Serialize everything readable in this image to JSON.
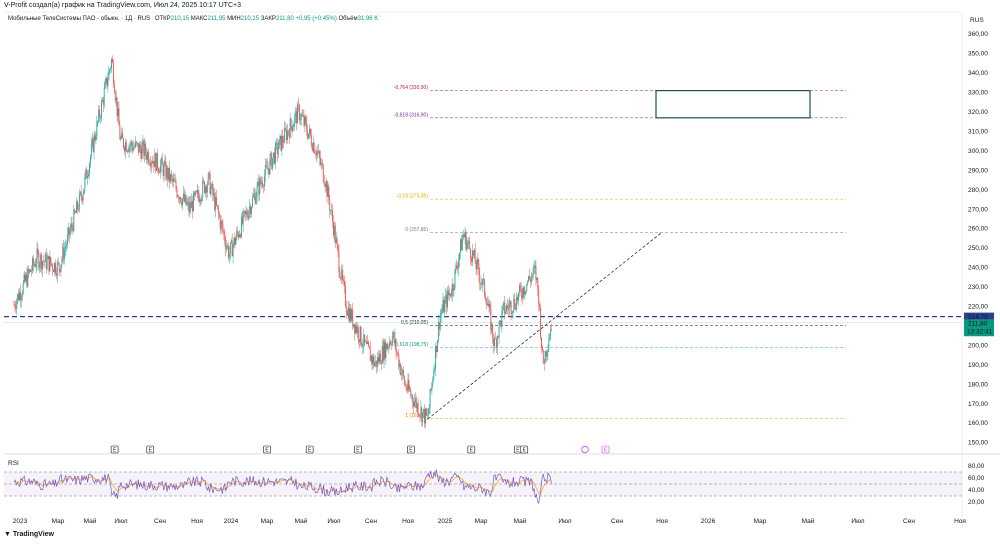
{
  "header": {
    "created_by": "V-Profit создал(а) график на TradingView.com, Июл 24, 2025 10:17 UTC+3"
  },
  "legend": {
    "symbol": "Мобильные ТелеСистемы ПАО - обыкн. · 1Д · RUS",
    "open_label": "ОТКР",
    "open": "210,15",
    "high_label": "МАКС",
    "high": "211,95",
    "low_label": "МИН",
    "low": "210,15",
    "close_label": "ЗАКР",
    "close": "211,80",
    "change": "+0,95 (+0,45%)",
    "volume_label": "Объём",
    "volume": "31,96 K"
  },
  "currency": "RUS",
  "price_axis": [
    "360,00",
    "350,00",
    "340,00",
    "330,00",
    "320,00",
    "310,00",
    "300,00",
    "290,00",
    "280,00",
    "270,00",
    "260,00",
    "250,00",
    "240,00",
    "230,00",
    "220,00",
    "210,00",
    "200,00",
    "190,00",
    "180,00",
    "170,00",
    "160,00",
    "150,00"
  ],
  "price_tags": {
    "line_price": "214,70",
    "last_price": "211,80",
    "countdown": "13:32:41"
  },
  "fib_labels": [
    {
      "text": "-0,764 (330,90)",
      "color": "#b22833"
    },
    {
      "text": "-0,618 (316,90)",
      "color": "#7b1fa2"
    },
    {
      "text": "-0,18 (275,05)",
      "color": "#f2a900"
    },
    {
      "text": "0 (257,85)",
      "color": "#787b86"
    },
    {
      "text": "0,5 (210,05)",
      "color": "#131722"
    },
    {
      "text": "0,618 (198,75)",
      "color": "#089981"
    },
    {
      "text": "1 (162,25)",
      "color": "#f57c00"
    }
  ],
  "earnings_marker": "E",
  "rsi": {
    "label": "RSI",
    "axis": [
      "80,00",
      "60,00",
      "40,00",
      "20,00"
    ]
  },
  "time_axis": [
    "2023",
    "Мар",
    "Май",
    "Июл",
    "Сен",
    "Ноя",
    "2024",
    "Мар",
    "Май",
    "Июл",
    "Сен",
    "Ноя",
    "2025",
    "Мар",
    "Май",
    "Июл",
    "Сен",
    "Ноя",
    "2026",
    "Мар",
    "Май",
    "Июл",
    "Сен",
    "Ноя"
  ],
  "footer": {
    "brand": "TradingView"
  },
  "colors": {
    "up": "#26a69a",
    "down": "#ef5350",
    "rsi_line": "#7e57c2",
    "rsi_ma": "#f7a600",
    "box": "#1f4e5a",
    "dash_blue": "#2a3f8f"
  },
  "chart_data": {
    "type": "candlestick",
    "title": "Мобильные ТелеСистемы ПАО - обыкн. · 1Д · RUS",
    "ylim": [
      150,
      360
    ],
    "yunit": "RUB",
    "series": [
      {
        "name": "price_path",
        "points": [
          [
            "2023-01-01",
            221
          ],
          [
            "2023-02-10",
            245
          ],
          [
            "2023-03-20",
            240
          ],
          [
            "2023-05-01",
            280
          ],
          [
            "2023-06-20",
            347
          ],
          [
            "2023-07-05",
            305
          ],
          [
            "2023-08-15",
            300
          ],
          [
            "2023-09-20",
            290
          ],
          [
            "2023-11-01",
            270
          ],
          [
            "2023-12-05",
            285
          ],
          [
            "2024-01-10",
            247
          ],
          [
            "2024-02-20",
            275
          ],
          [
            "2024-04-01",
            300
          ],
          [
            "2024-05-10",
            320
          ],
          [
            "2024-06-10",
            300
          ],
          [
            "2024-06-25",
            285
          ],
          [
            "2024-07-10",
            260
          ],
          [
            "2024-07-20",
            240
          ],
          [
            "2024-08-01",
            220
          ],
          [
            "2024-09-01",
            200
          ],
          [
            "2024-09-20",
            190
          ],
          [
            "2024-10-20",
            205
          ],
          [
            "2024-11-10",
            180
          ],
          [
            "2024-12-10",
            165
          ],
          [
            "2024-12-20",
            162
          ],
          [
            "2025-01-10",
            215
          ],
          [
            "2025-02-01",
            230
          ],
          [
            "2025-02-20",
            257
          ],
          [
            "2025-03-10",
            245
          ],
          [
            "2025-04-01",
            225
          ],
          [
            "2025-04-15",
            200
          ],
          [
            "2025-05-01",
            218
          ],
          [
            "2025-05-20",
            222
          ],
          [
            "2025-06-10",
            232
          ],
          [
            "2025-06-25",
            238
          ],
          [
            "2025-07-01",
            225
          ],
          [
            "2025-07-08",
            190
          ],
          [
            "2025-07-24",
            211.8
          ]
        ]
      }
    ],
    "horizontal_levels": [
      {
        "label": "-0,764",
        "value": 330.9
      },
      {
        "label": "-0,618",
        "value": 316.9
      },
      {
        "label": "-0,18",
        "value": 275.05
      },
      {
        "label": "0",
        "value": 257.85
      },
      {
        "label": "0,5",
        "value": 210.05
      },
      {
        "label": "0,618",
        "value": 198.75
      },
      {
        "label": "1",
        "value": 162.25
      },
      {
        "label": "line",
        "value": 214.7
      }
    ],
    "trendline": [
      [
        "2024-12-20",
        162
      ],
      [
        "2026-01-31",
        258
      ]
    ],
    "rsi_ylim": [
      0,
      100
    ],
    "rsi_bands": [
      30,
      50,
      70
    ]
  }
}
